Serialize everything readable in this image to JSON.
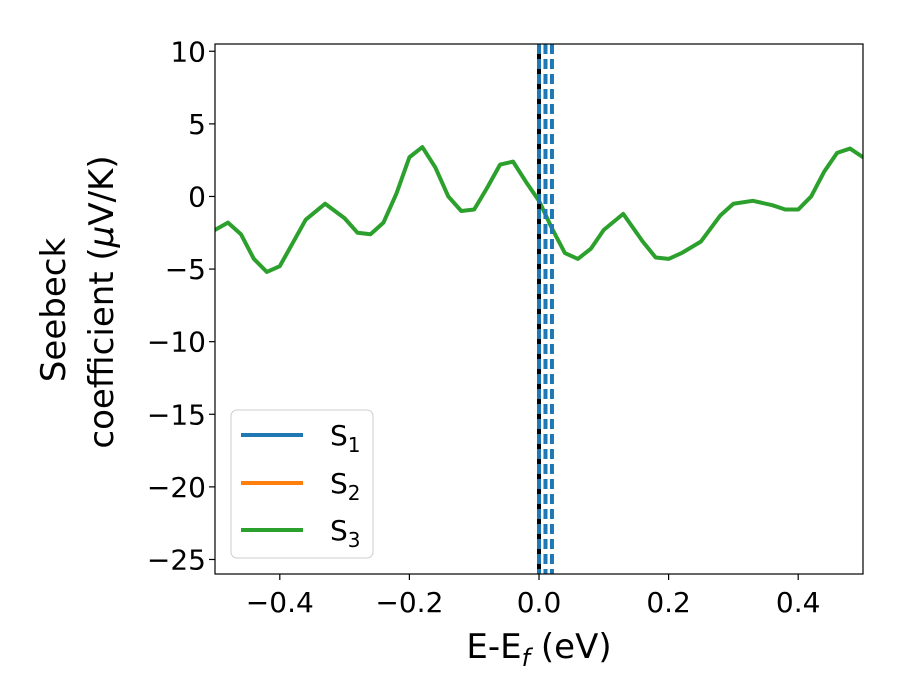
{
  "chart_data": {
    "type": "line",
    "xlabel": "E-E",
    "xlabel_sub": "f",
    "xlabel_unit": " (eV)",
    "ylabel_line1": "Seebeck",
    "ylabel_line2": "coefficient  (",
    "ylabel_mu": "μ",
    "ylabel_unit": "V/K)",
    "xlim": [
      -0.5,
      0.5
    ],
    "ylim": [
      -26,
      10.5
    ],
    "xticks": [
      -0.4,
      -0.2,
      0.0,
      0.2,
      0.4
    ],
    "xtick_labels": [
      "−0.4",
      "−0.2",
      "0.0",
      "0.2",
      "0.4"
    ],
    "yticks": [
      10,
      5,
      0,
      -5,
      -10,
      -15,
      -20,
      -25
    ],
    "ytick_labels": [
      "10",
      "5",
      "0",
      "−5",
      "−10",
      "−15",
      "−20",
      "−25"
    ],
    "legend": {
      "position": "lower-left",
      "entries": [
        {
          "base": "S",
          "sub": "1",
          "color": "#1f77b4"
        },
        {
          "base": "S",
          "sub": "2",
          "color": "#ff7f0e"
        },
        {
          "base": "S",
          "sub": "3",
          "color": "#2ca02c"
        }
      ]
    },
    "series": [
      {
        "color": "#2ca02c",
        "x": [
          -0.5,
          -0.48,
          -0.46,
          -0.44,
          -0.42,
          -0.4,
          -0.38,
          -0.36,
          -0.33,
          -0.3,
          -0.28,
          -0.26,
          -0.24,
          -0.22,
          -0.2,
          -0.18,
          -0.16,
          -0.14,
          -0.12,
          -0.1,
          -0.08,
          -0.06,
          -0.04,
          -0.02,
          0.0,
          0.02,
          0.04,
          0.06,
          0.08,
          0.1,
          0.13,
          0.16,
          0.18,
          0.2,
          0.22,
          0.25,
          0.28,
          0.3,
          0.33,
          0.36,
          0.38,
          0.4,
          0.42,
          0.44,
          0.46,
          0.48,
          0.5
        ],
        "y": [
          -2.3,
          -1.8,
          -2.6,
          -4.3,
          -5.2,
          -4.8,
          -3.2,
          -1.6,
          -0.5,
          -1.5,
          -2.5,
          -2.6,
          -1.8,
          0.2,
          2.7,
          3.4,
          2.0,
          0.0,
          -1.0,
          -0.9,
          0.6,
          2.2,
          2.4,
          1.0,
          -0.3,
          -2.2,
          -3.9,
          -4.3,
          -3.6,
          -2.3,
          -1.2,
          -3.1,
          -4.2,
          -4.3,
          -3.9,
          -3.1,
          -1.3,
          -0.5,
          -0.3,
          -0.6,
          -0.9,
          -0.9,
          0.0,
          1.7,
          3.0,
          3.3,
          2.7
        ]
      }
    ],
    "vlines": [
      {
        "x": 0.0,
        "color": "#000000",
        "style": "solid"
      },
      {
        "x": 0.0,
        "color": "#1f77b4",
        "style": "dashed"
      },
      {
        "x": 0.01,
        "color": "#1f77b4",
        "style": "dashed"
      },
      {
        "x": 0.02,
        "color": "#1f77b4",
        "style": "dashed"
      }
    ]
  }
}
